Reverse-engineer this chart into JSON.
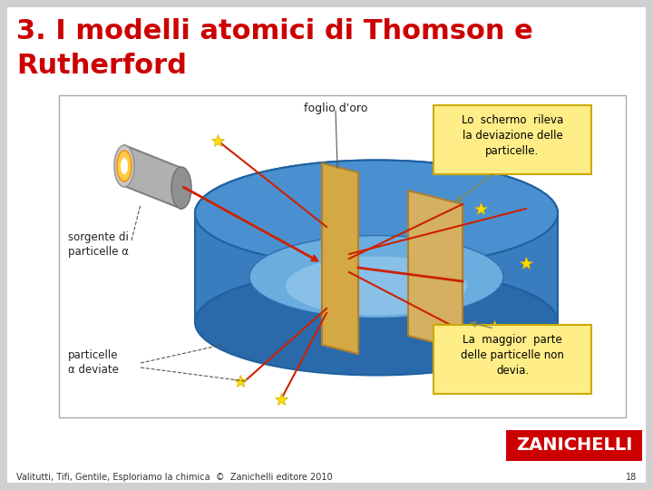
{
  "title_line1": "3. I modelli atomici di Thomson e",
  "title_line2": "Rutherford",
  "title_color": "#cc0000",
  "title_fontsize": 22,
  "bg_color": "#d0d0d0",
  "slide_bg": "#ffffff",
  "footer_text": "Valitutti, Tifi, Gentile, Esploriamo la chimica  ©  Zanichelli editore 2010",
  "footer_page": "18",
  "footer_fontsize": 7,
  "zanichelli_bg": "#cc0000",
  "zanichelli_text": "ZANICHELLI",
  "zanichelli_fontsize": 14
}
